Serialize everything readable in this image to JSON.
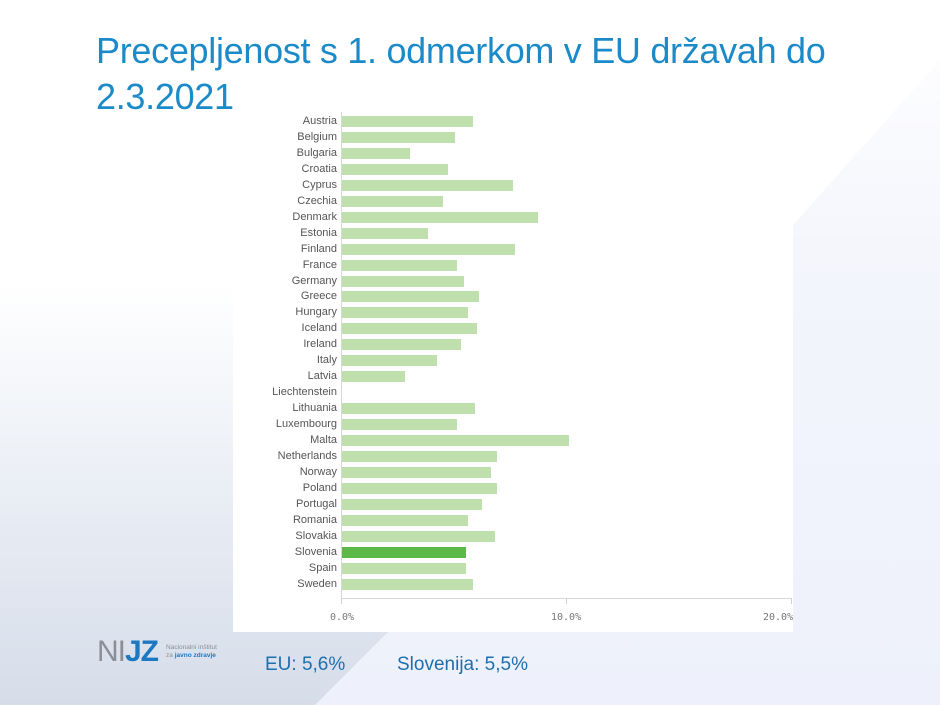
{
  "slide": {
    "title": "Precepljenost s 1. odmerkom v EU državah do 2.3.2021",
    "footer": {
      "eu": "EU: 5,6%",
      "slovenia": "Slovenija: 5,5%"
    },
    "logo": {
      "mark_left": "NI",
      "mark_right": "JZ",
      "line1": "Nacionalni inštitut",
      "line2_prefix": "za ",
      "line2_bold": "javno zdravje"
    },
    "colors": {
      "title": "#1b8ac9",
      "bar": "#bfe0ad",
      "bar_highlight": "#5cb947",
      "footer_text": "#1f6fae"
    }
  },
  "chart_data": {
    "type": "bar",
    "orientation": "horizontal",
    "title": "Precepljenost s 1. odmerkom v EU državah do 2.3.2021",
    "xlabel": "",
    "ylabel": "",
    "xlim": [
      0,
      20
    ],
    "x_ticks": [
      "0.0%",
      "10.0%",
      "20.0%"
    ],
    "grid": false,
    "legend": null,
    "highlight": "Slovenia",
    "categories": [
      "Austria",
      "Belgium",
      "Bulgaria",
      "Croatia",
      "Cyprus",
      "Czechia",
      "Denmark",
      "Estonia",
      "Finland",
      "France",
      "Germany",
      "Greece",
      "Hungary",
      "Iceland",
      "Ireland",
      "Italy",
      "Latvia",
      "Liechtenstein",
      "Lithuania",
      "Luxembourg",
      "Malta",
      "Netherlands",
      "Norway",
      "Poland",
      "Portugal",
      "Romania",
      "Slovakia",
      "Slovenia",
      "Spain",
      "Sweden"
    ],
    "values": [
      5.8,
      5.0,
      3.0,
      4.7,
      7.6,
      4.5,
      8.7,
      3.8,
      7.7,
      5.1,
      5.4,
      6.1,
      5.6,
      6.0,
      5.3,
      4.2,
      2.8,
      0.0,
      5.9,
      5.1,
      10.1,
      6.9,
      6.6,
      6.9,
      6.2,
      5.6,
      6.8,
      5.5,
      5.5,
      5.8
    ],
    "annotations": [
      "EU: 5,6%",
      "Slovenija: 5,5%"
    ]
  }
}
